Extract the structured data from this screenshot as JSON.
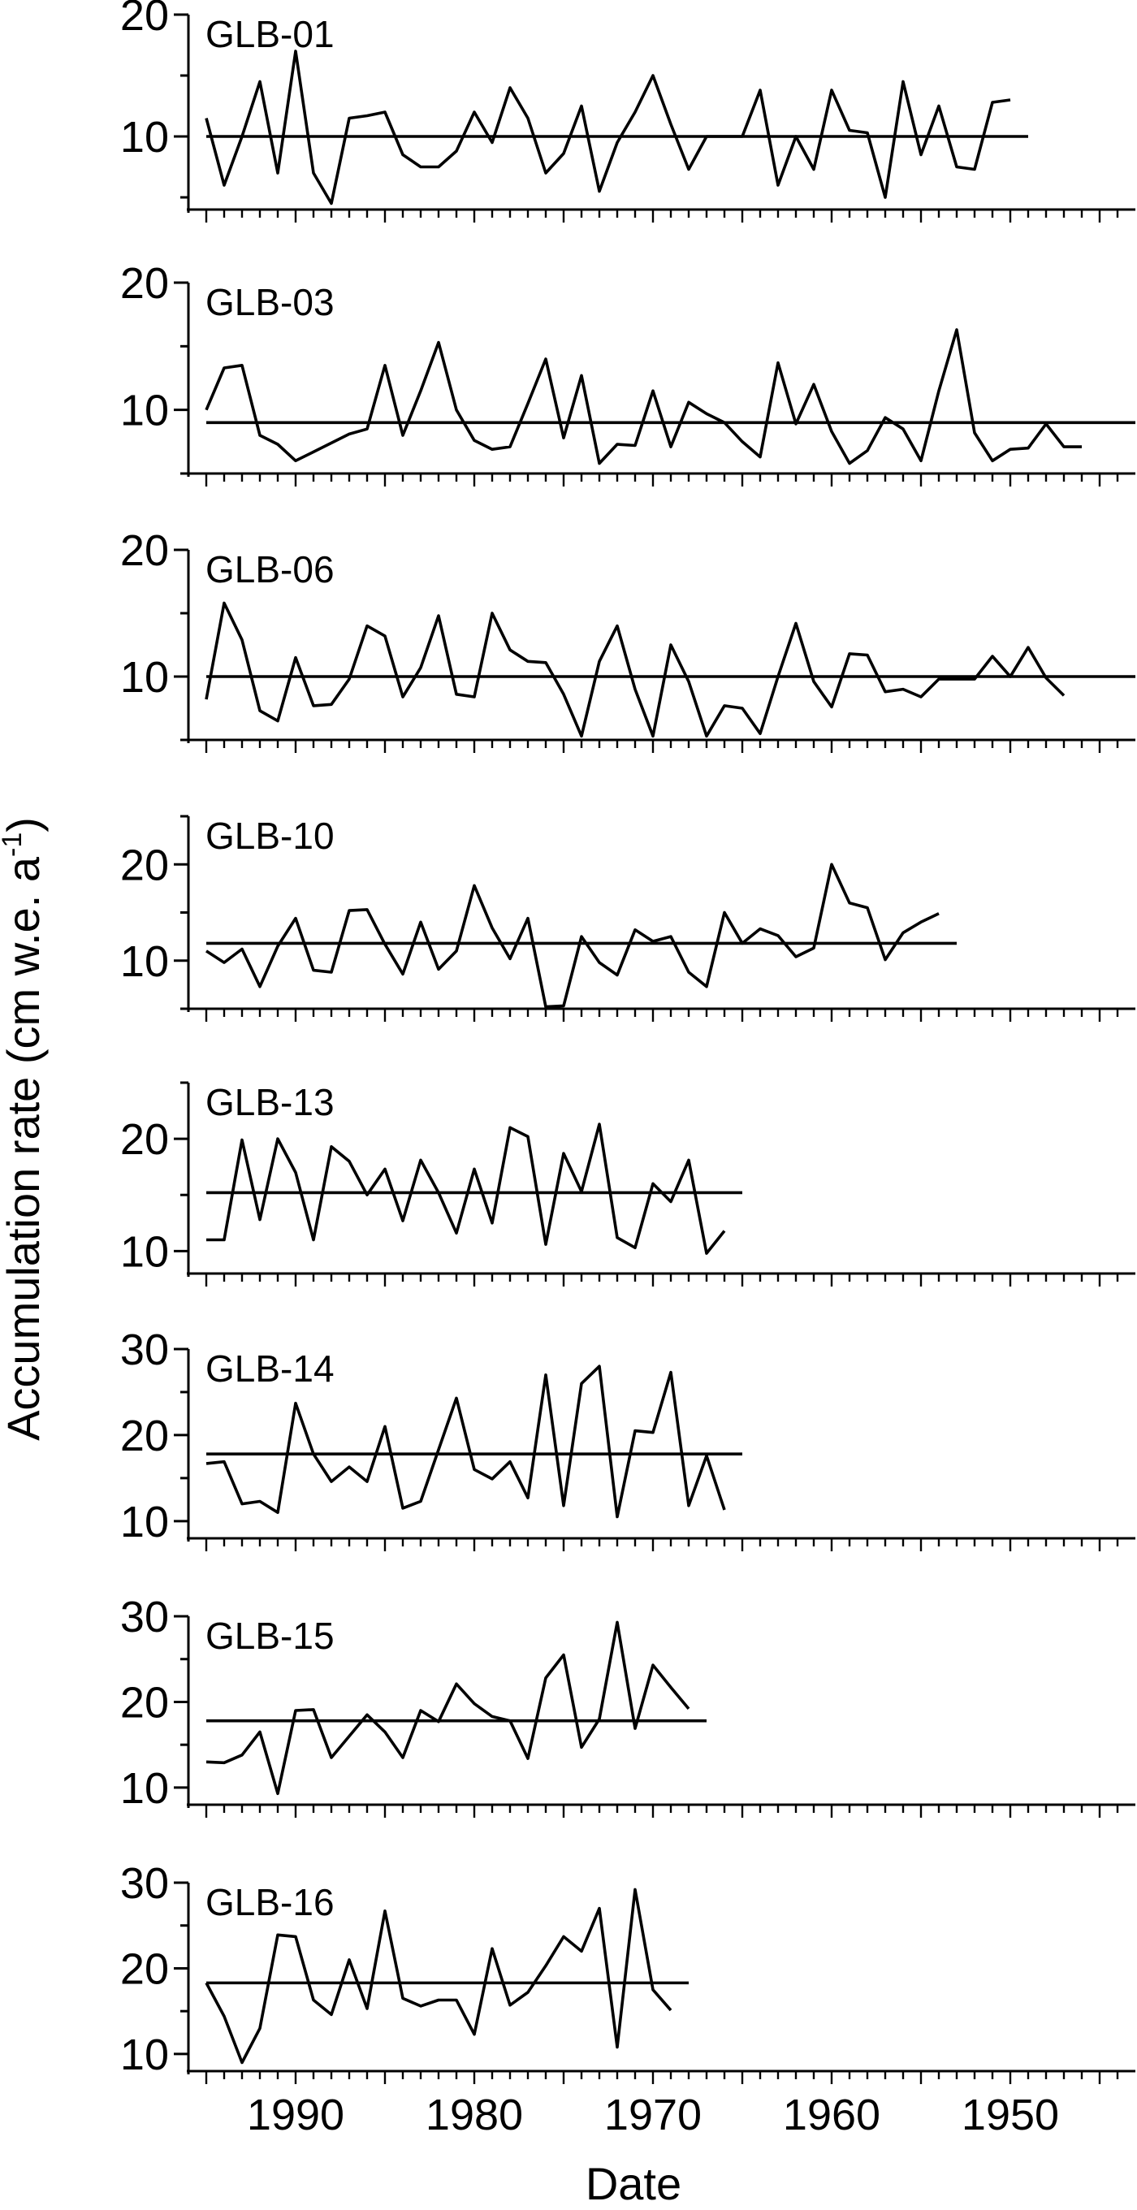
{
  "chart_data": {
    "type": "line",
    "xlabel": "Date",
    "ylabel": "Accumulation rate (cm w.e. a",
    "ylabel_sup": "-1",
    "ylabel_end": ")",
    "xlim": [
      1996,
      1943
    ],
    "x_ticks": [
      1990,
      1980,
      1970,
      1960,
      1950
    ],
    "x_tick_labels": [
      "1990",
      "1980",
      "1970",
      "1960",
      "1950"
    ],
    "panels": [
      {
        "name": "GLB-01",
        "ylim": [
          4,
          20
        ],
        "y_ticks": [
          10,
          20
        ],
        "y_tick_labels": [
          "10",
          "20"
        ],
        "mean": 10,
        "x": [
          1995,
          1994,
          1993,
          1992,
          1991,
          1990,
          1989,
          1988,
          1987,
          1986,
          1985,
          1984,
          1983,
          1982,
          1981,
          1980,
          1979,
          1978,
          1977,
          1976,
          1975,
          1974,
          1973,
          1972,
          1971,
          1970,
          1969,
          1968,
          1967,
          1966,
          1965,
          1964,
          1963,
          1962,
          1961,
          1960,
          1959,
          1958,
          1957,
          1956,
          1955,
          1954,
          1953,
          1952,
          1951,
          1950,
          1949
        ],
        "values": [
          11.5,
          6,
          10,
          14.5,
          7,
          17,
          7,
          4.5,
          11.5,
          11.7,
          12,
          8.5,
          7.5,
          7.5,
          8.8,
          12,
          9.5,
          14,
          11.5,
          7,
          8.6,
          12.5,
          5.5,
          9.5,
          12,
          15,
          11,
          7.3,
          10,
          10,
          10,
          13.8,
          6,
          10,
          7.3,
          13.8,
          10.5,
          10.3,
          5,
          14.5,
          8.5,
          12.5,
          7.5,
          7.3,
          12.8,
          13,
          null
        ]
      },
      {
        "name": "GLB-03",
        "ylim": [
          5,
          20
        ],
        "y_ticks": [
          10,
          20
        ],
        "y_tick_labels": [
          "10",
          "20"
        ],
        "mean": 9,
        "x": [
          1995,
          1994,
          1993,
          1992,
          1991,
          1990,
          1989,
          1988,
          1987,
          1986,
          1985,
          1984,
          1983,
          1982,
          1981,
          1980,
          1979,
          1978,
          1977,
          1976,
          1975,
          1974,
          1973,
          1972,
          1971,
          1970,
          1969,
          1968,
          1967,
          1966,
          1965,
          1964,
          1963,
          1962,
          1961,
          1960,
          1959,
          1958,
          1957,
          1956,
          1955,
          1954,
          1953,
          1952,
          1951,
          1950,
          1949,
          1948,
          1947,
          1946
        ],
        "values": [
          10,
          13.3,
          13.5,
          8,
          7.3,
          6,
          6.7,
          7.4,
          8.1,
          8.5,
          13.5,
          8,
          11.5,
          15.3,
          10,
          7.6,
          6.9,
          7.1,
          10.5,
          14,
          7.8,
          12.7,
          5.8,
          7.3,
          7.2,
          11.5,
          7.1,
          10.6,
          9.7,
          9,
          7.5,
          6.3,
          13.7,
          8.9,
          12,
          8.3,
          5.8,
          6.8,
          9.4,
          8.5,
          6,
          11.5,
          16.3,
          8.2,
          6,
          6.9,
          7,
          8.9,
          7.1,
          7.1
        ]
      },
      {
        "name": "GLB-06",
        "ylim": [
          5,
          20
        ],
        "y_ticks": [
          10,
          20
        ],
        "y_tick_labels": [
          "10",
          "20"
        ],
        "mean": 10,
        "x": [
          1995,
          1994,
          1993,
          1992,
          1991,
          1990,
          1989,
          1988,
          1987,
          1986,
          1985,
          1984,
          1983,
          1982,
          1981,
          1980,
          1979,
          1978,
          1977,
          1976,
          1975,
          1974,
          1973,
          1972,
          1971,
          1970,
          1969,
          1968,
          1967,
          1966,
          1965,
          1964,
          1963,
          1962,
          1961,
          1960,
          1959,
          1958,
          1957,
          1956,
          1955,
          1954,
          1953,
          1952,
          1951,
          1950,
          1949,
          1948,
          1947,
          1946,
          1945,
          1944
        ],
        "values": [
          8.2,
          15.8,
          12.9,
          7.3,
          6.5,
          11.5,
          7.7,
          7.8,
          9.8,
          14,
          13.2,
          8.4,
          10.7,
          14.8,
          8.6,
          8.4,
          15,
          12.1,
          11.2,
          11.1,
          8.6,
          5.3,
          11.2,
          14,
          9,
          5.3,
          12.5,
          9.6,
          5.3,
          7.7,
          7.5,
          5.5,
          10,
          14.2,
          9.6,
          7.6,
          11.8,
          11.7,
          8.8,
          9,
          8.4,
          9.8,
          9.8,
          9.8,
          11.6,
          10,
          12.3,
          9.9,
          8.5,
          null,
          null,
          null
        ]
      },
      {
        "name": "GLB-10",
        "ylim": [
          5,
          25
        ],
        "y_ticks": [
          10,
          20
        ],
        "y_tick_labels": [
          "10",
          "20"
        ],
        "mean": 11.8,
        "x": [
          1995,
          1994,
          1993,
          1992,
          1991,
          1990,
          1989,
          1988,
          1987,
          1986,
          1985,
          1984,
          1983,
          1982,
          1981,
          1980,
          1979,
          1978,
          1977,
          1976,
          1975,
          1974,
          1973,
          1972,
          1971,
          1970,
          1969,
          1968,
          1967,
          1966,
          1965,
          1964,
          1963,
          1962,
          1961,
          1960,
          1959,
          1958,
          1957,
          1956,
          1955,
          1954,
          1953
        ],
        "values": [
          11,
          9.8,
          11.2,
          7.3,
          11.5,
          14.4,
          9,
          8.8,
          15.2,
          15.3,
          11.7,
          8.6,
          14,
          9.1,
          11,
          17.8,
          13.4,
          10.2,
          14.4,
          5.2,
          5.3,
          12.5,
          9.8,
          8.5,
          13.2,
          12,
          12.5,
          8.8,
          7.3,
          15,
          11.8,
          13.3,
          12.6,
          10.4,
          11.3,
          20,
          16,
          15.5,
          10.1,
          12.9,
          14,
          14.9,
          null
        ]
      },
      {
        "name": "GLB-13",
        "ylim": [
          8,
          25
        ],
        "y_ticks": [
          10,
          20
        ],
        "y_tick_labels": [
          "10",
          "20"
        ],
        "mean": 15.2,
        "x": [
          1995,
          1994,
          1993,
          1992,
          1991,
          1990,
          1989,
          1988,
          1987,
          1986,
          1985,
          1984,
          1983,
          1982,
          1981,
          1980,
          1979,
          1978,
          1977,
          1976,
          1975,
          1974,
          1973,
          1972,
          1971,
          1970,
          1969,
          1968,
          1967,
          1966,
          1965
        ],
        "values": [
          11,
          11,
          19.9,
          12.8,
          20,
          17,
          11,
          19.3,
          18,
          15,
          17.3,
          12.7,
          18.1,
          15.2,
          11.6,
          17.3,
          12.5,
          21,
          20.2,
          10.6,
          18.7,
          15.3,
          21.3,
          11.2,
          10.3,
          16,
          14.4,
          18.1,
          9.8,
          11.8,
          null
        ]
      },
      {
        "name": "GLB-14",
        "ylim": [
          8,
          30
        ],
        "y_ticks": [
          10,
          20,
          30
        ],
        "y_tick_labels": [
          "10",
          "20",
          "30"
        ],
        "mean": 17.8,
        "x": [
          1995,
          1994,
          1993,
          1992,
          1991,
          1990,
          1989,
          1988,
          1987,
          1986,
          1985,
          1984,
          1983,
          1982,
          1981,
          1980,
          1979,
          1978,
          1977,
          1976,
          1975,
          1974,
          1973,
          1972,
          1971,
          1970,
          1969,
          1968,
          1967,
          1966,
          1965
        ],
        "values": [
          16.7,
          16.9,
          12,
          12.3,
          11,
          23.7,
          17.8,
          14.6,
          16.3,
          14.6,
          21,
          11.5,
          12.3,
          18.3,
          24.3,
          16,
          14.9,
          16.9,
          12.7,
          27,
          11.8,
          26,
          28,
          10.5,
          20.5,
          20.3,
          27.3,
          11.8,
          17.6,
          11.3,
          null
        ]
      },
      {
        "name": "GLB-15",
        "ylim": [
          8,
          30
        ],
        "y_ticks": [
          10,
          20,
          30
        ],
        "y_tick_labels": [
          "10",
          "20",
          "30"
        ],
        "mean": 17.8,
        "x": [
          1995,
          1994,
          1993,
          1992,
          1991,
          1990,
          1989,
          1988,
          1987,
          1986,
          1985,
          1984,
          1983,
          1982,
          1981,
          1980,
          1979,
          1978,
          1977,
          1976,
          1975,
          1974,
          1973,
          1972,
          1971,
          1970,
          1969,
          1968,
          1967
        ],
        "values": [
          13,
          12.9,
          13.8,
          16.5,
          9.3,
          19,
          19.1,
          13.5,
          16,
          18.5,
          16.5,
          13.5,
          19,
          17.7,
          22.1,
          19.8,
          18.3,
          17.8,
          13.4,
          22.8,
          25.5,
          14.7,
          18,
          29.3,
          16.9,
          24.3,
          21.7,
          19.2,
          null
        ]
      },
      {
        "name": "GLB-16",
        "ylim": [
          8,
          30
        ],
        "y_ticks": [
          10,
          20,
          30
        ],
        "y_tick_labels": [
          "10",
          "20",
          "30"
        ],
        "mean": 18.3,
        "x": [
          1995,
          1994,
          1993,
          1992,
          1991,
          1990,
          1989,
          1988,
          1987,
          1986,
          1985,
          1984,
          1983,
          1982,
          1981,
          1980,
          1979,
          1978,
          1977,
          1976,
          1975,
          1974,
          1973,
          1972,
          1971,
          1970,
          1969,
          1968,
          1967
        ],
        "values": [
          18.3,
          14.4,
          9,
          13,
          23.9,
          23.7,
          16.3,
          14.6,
          21,
          15.3,
          26.7,
          16.5,
          15.6,
          16.3,
          16.3,
          12.3,
          22.3,
          15.7,
          17.2,
          20.3,
          23.7,
          22,
          27,
          10.8,
          29.2,
          17.5,
          15.1,
          null,
          null
        ]
      }
    ]
  }
}
